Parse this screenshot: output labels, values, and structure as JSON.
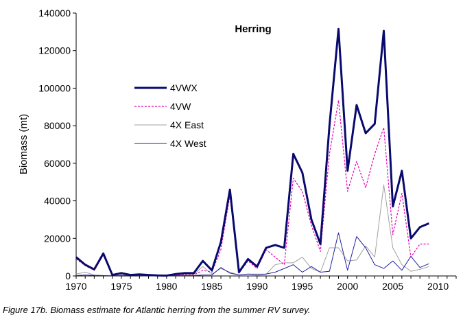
{
  "caption": "Figure 17b. Biomass estimate for Atlantic herring from the summer RV survey.",
  "chart_data": {
    "type": "line",
    "title": "Herring",
    "xlabel": "",
    "ylabel": "Biomass (mt)",
    "xlim": [
      1970,
      2012
    ],
    "ylim": [
      0,
      140000
    ],
    "xticks": [
      1970,
      1975,
      1980,
      1985,
      1990,
      1995,
      2000,
      2005,
      2010
    ],
    "yticks": [
      0,
      20000,
      40000,
      60000,
      80000,
      100000,
      120000,
      140000
    ],
    "grid": false,
    "legend_position": "left-middle",
    "x": [
      1970,
      1971,
      1972,
      1973,
      1974,
      1975,
      1976,
      1977,
      1978,
      1979,
      1980,
      1981,
      1982,
      1983,
      1984,
      1985,
      1986,
      1987,
      1988,
      1989,
      1990,
      1991,
      1992,
      1993,
      1994,
      1995,
      1996,
      1997,
      1998,
      1999,
      2000,
      2001,
      2002,
      2003,
      2004,
      2005,
      2006,
      2007,
      2008,
      2009
    ],
    "series": [
      {
        "name": "4VWX",
        "color": "#0a0a6e",
        "style": "solid-thick",
        "values": [
          10000,
          6000,
          3500,
          12000,
          500,
          1500,
          500,
          800,
          500,
          300,
          200,
          1000,
          1500,
          1500,
          8000,
          3000,
          18000,
          46000,
          2000,
          9000,
          5000,
          15000,
          16500,
          15000,
          65000,
          55000,
          30000,
          17000,
          80000,
          131500,
          56000,
          91000,
          76000,
          81000,
          130500,
          37000,
          56000,
          20000,
          26000,
          28000
        ]
      },
      {
        "name": "4VW",
        "color": "#e600b4",
        "style": "dotted",
        "values": [
          9000,
          5500,
          3000,
          11000,
          400,
          1000,
          300,
          600,
          300,
          200,
          100,
          500,
          500,
          500,
          3000,
          2000,
          14000,
          43000,
          1500,
          8000,
          4000,
          14000,
          10000,
          6000,
          52000,
          45000,
          27000,
          13000,
          65000,
          93500,
          45000,
          61000,
          47000,
          65000,
          79000,
          22000,
          44000,
          10000,
          17000,
          17000
        ]
      },
      {
        "name": "4X East",
        "color": "#a0a0a0",
        "style": "solid-thin",
        "values": [
          1000,
          2000,
          500,
          300,
          200,
          300,
          200,
          200,
          200,
          100,
          100,
          500,
          800,
          800,
          5000,
          1000,
          4000,
          2000,
          500,
          1000,
          1000,
          1000,
          6000,
          7000,
          7000,
          10000,
          4000,
          2000,
          15000,
          15000,
          8000,
          8500,
          16000,
          10000,
          48500,
          15000,
          6000,
          2500,
          3500,
          5000
        ]
      },
      {
        "name": "4X West",
        "color": "#2020a0",
        "style": "solid-thin",
        "values": [
          200,
          500,
          300,
          200,
          100,
          200,
          200,
          200,
          100,
          100,
          100,
          200,
          200,
          200,
          500,
          500,
          4500,
          1500,
          500,
          1000,
          500,
          1000,
          2000,
          4000,
          6000,
          2000,
          5000,
          2000,
          2500,
          23000,
          3000,
          21000,
          15000,
          6000,
          4000,
          8000,
          3000,
          10500,
          4500,
          6500
        ]
      }
    ]
  }
}
